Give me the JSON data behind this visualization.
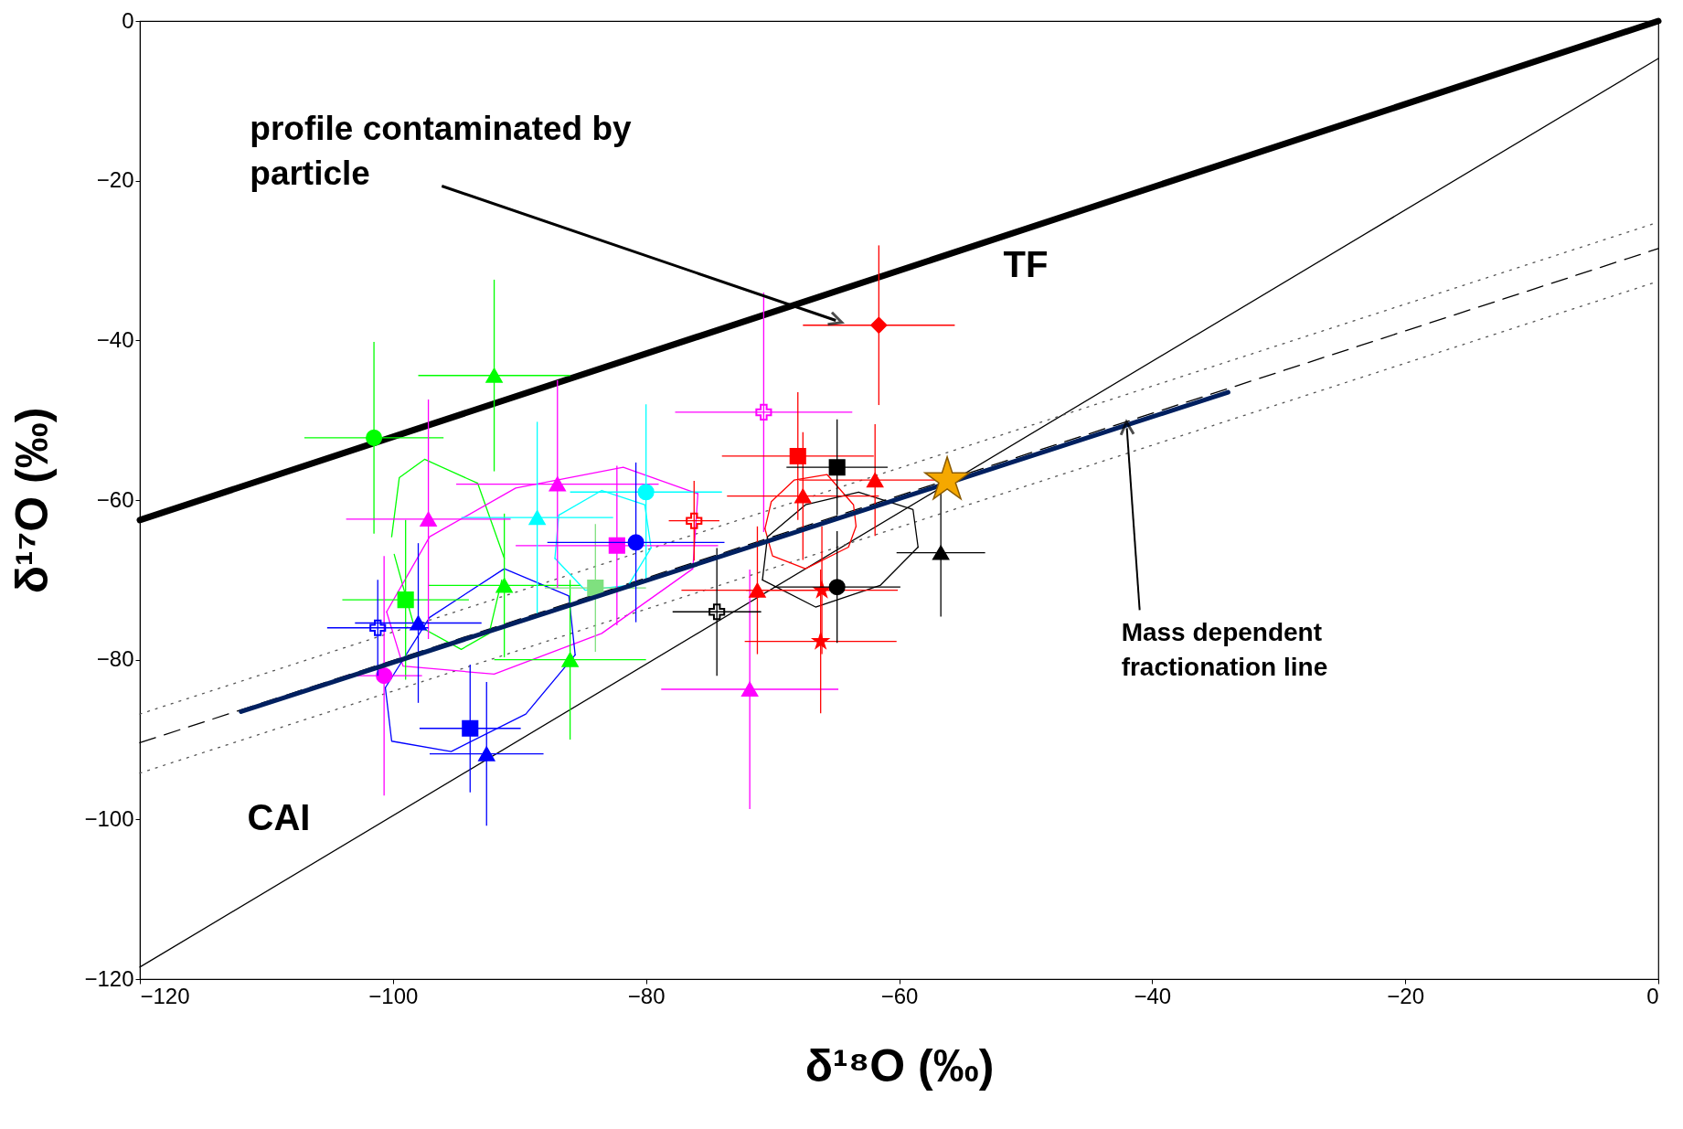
{
  "chart_data": {
    "type": "scatter",
    "xlabel": "δ¹⁸O (‰)",
    "ylabel": "δ¹⁷O (‰)",
    "xlim": [
      -120,
      0
    ],
    "ylim": [
      -120,
      0
    ],
    "xticks": [
      -120,
      -100,
      -80,
      -60,
      -40,
      -20,
      0
    ],
    "yticks": [
      -120,
      -100,
      -80,
      -60,
      -40,
      -20,
      0
    ],
    "series": [
      {
        "type": "line",
        "color": "#000000",
        "line_style": "solid",
        "x": [
          -120,
          0
        ],
        "values": [
          -62.5,
          0
        ]
      },
      {
        "type": "line",
        "color": "#000000",
        "line_style": "solid",
        "x": [
          -120,
          0
        ],
        "values": [
          -118.5,
          -4.7
        ]
      },
      {
        "type": "line",
        "color": "#000000",
        "line_style": "dashed",
        "x": [
          -120,
          0
        ],
        "values": [
          -90.4,
          -28.5
        ]
      },
      {
        "type": "line",
        "color": "#555555",
        "line_style": "dotted",
        "x": [
          -120,
          0
        ],
        "values": [
          -86.8,
          -25.2
        ]
      },
      {
        "type": "line",
        "color": "#555555",
        "line_style": "dotted",
        "x": [
          -120,
          0
        ],
        "values": [
          -94.2,
          -32.6
        ]
      },
      {
        "type": "line",
        "color": "#00ff00",
        "line_style": "solid",
        "x": [
          -100.1,
          -99.5,
          -97.5,
          -93.3,
          -91.2
        ],
        "values": [
          -64.6,
          -57.2,
          -54.9,
          -57.9,
          -67.3
        ]
      },
      {
        "type": "line",
        "color": "#00ff00",
        "line_style": "solid",
        "x": [
          -99.9,
          -98.4,
          -94.6,
          -92.4,
          -91.4
        ],
        "values": [
          -66.8,
          -75.4,
          -78.7,
          -76.7,
          -70.0
        ]
      },
      {
        "type": "line",
        "color": "#ff00ff",
        "line_style": "solid",
        "x": [
          -100.5,
          -97.1,
          -90.3,
          -81.8,
          -75.9
        ],
        "values": [
          -74.0,
          -64.6,
          -58.5,
          -55.9,
          -59.2
        ]
      },
      {
        "type": "line",
        "color": "#ff00ff",
        "line_style": "solid",
        "x": [
          -100.5,
          -99.2,
          -92.0,
          -83.5,
          -76.3,
          -75.9
        ],
        "values": [
          -74.0,
          -80.8,
          -81.8,
          -76.7,
          -68.6,
          -59.2
        ]
      },
      {
        "type": "line",
        "color": "#00ffff",
        "line_style": "solid",
        "x": [
          -87.2,
          -86.9,
          -83.5,
          -80.1,
          -79.6
        ],
        "values": [
          -67.3,
          -61.9,
          -58.8,
          -60.6,
          -66.0
        ]
      },
      {
        "type": "line",
        "color": "#00ffff",
        "line_style": "solid",
        "x": [
          -87.2,
          -84.8,
          -81.4,
          -79.6
        ],
        "values": [
          -67.3,
          -71.3,
          -70.7,
          -66.0
        ]
      },
      {
        "type": "line",
        "color": "#0000ff",
        "line_style": "solid",
        "x": [
          -100.6,
          -97.1,
          -91.2,
          -86.1,
          -85.6
        ],
        "values": [
          -83.5,
          -74.7,
          -68.6,
          -72.0,
          -79.4
        ]
      },
      {
        "type": "line",
        "color": "#0000ff",
        "line_style": "solid",
        "x": [
          -100.6,
          -100.1,
          -95.4,
          -89.5,
          -85.6
        ],
        "values": [
          -83.5,
          -90.2,
          -91.5,
          -86.8,
          -79.4
        ]
      },
      {
        "type": "line",
        "color": "#ff0000",
        "line_style": "solid",
        "x": [
          -70.6,
          -70.1,
          -68.3,
          -65.7,
          -63.6,
          -63.4
        ],
        "values": [
          -63.6,
          -60.2,
          -57.5,
          -56.8,
          -60.6,
          -63.3
        ]
      },
      {
        "type": "line",
        "color": "#ff0000",
        "line_style": "solid",
        "x": [
          -70.6,
          -70.0,
          -67.4,
          -64.0,
          -63.4
        ],
        "values": [
          -63.6,
          -67.0,
          -68.6,
          -65.9,
          -63.3
        ]
      },
      {
        "type": "line",
        "color": "#000000",
        "line_style": "solid",
        "x": [
          -70.8,
          -70.4,
          -67.4,
          -63.2,
          -58.9,
          -58.5
        ],
        "values": [
          -70.0,
          -64.6,
          -60.6,
          -59.0,
          -61.2,
          -65.9
        ]
      },
      {
        "type": "line",
        "color": "#000000",
        "line_style": "solid",
        "x": [
          -70.8,
          -66.6,
          -61.5,
          -58.5
        ],
        "values": [
          -70.0,
          -73.4,
          -70.7,
          -65.9
        ]
      },
      {
        "color": "#00ff00",
        "marker": "circle",
        "x": [
          -101.5
        ],
        "values": [
          -52.2
        ],
        "xerrors": [
          5.5
        ],
        "errors": [
          12
        ]
      },
      {
        "color": "#00ff00",
        "marker": "triangle",
        "x": [
          -92,
          -91.2,
          -86
        ],
        "values": [
          -44.4,
          -70.7,
          -80
        ],
        "xerrors": [
          6,
          6,
          6
        ],
        "errors": [
          12,
          9,
          10
        ]
      },
      {
        "color": "#00ff00",
        "marker": "square",
        "x": [
          -99
        ],
        "values": [
          -72.5
        ],
        "xerrors": [
          5
        ],
        "errors": [
          10
        ]
      },
      {
        "color": "#7fe07f",
        "marker": "square",
        "x": [
          -84
        ],
        "values": [
          -71
        ],
        "xerrors": [
          4
        ],
        "errors": [
          8
        ]
      },
      {
        "color": "#ff00ff",
        "marker": "triangle",
        "x": [
          -97.2,
          -87,
          -71.8
        ],
        "values": [
          -62.4,
          -58,
          -83.7
        ],
        "xerrors": [
          6.5,
          8,
          7
        ],
        "errors": [
          15,
          13,
          15
        ]
      },
      {
        "color": "#ff00ff",
        "marker": "square",
        "x": [
          -82.3
        ],
        "values": [
          -65.7
        ],
        "xerrors": [
          8
        ],
        "errors": [
          10
        ]
      },
      {
        "color": "#ff00ff",
        "marker": "cross",
        "x": [
          -70.7
        ],
        "values": [
          -49
        ],
        "xerrors": [
          7
        ],
        "errors": [
          15
        ]
      },
      {
        "color": "#ff00ff",
        "marker": "circle",
        "x": [
          -100.7
        ],
        "values": [
          -82
        ],
        "xerrors": [
          3
        ],
        "errors": [
          15
        ]
      },
      {
        "color": "#00ffff",
        "marker": "triangle",
        "x": [
          -88.6
        ],
        "values": [
          -62.2
        ],
        "xerrors": [
          6
        ],
        "errors": [
          12
        ]
      },
      {
        "color": "#00ffff",
        "marker": "circle",
        "x": [
          -80
        ],
        "values": [
          -59
        ],
        "xerrors": [
          6
        ],
        "errors": [
          11
        ]
      },
      {
        "color": "#0000ff",
        "marker": "circle",
        "x": [
          -80.8
        ],
        "values": [
          -65.3
        ],
        "xerrors": [
          7
        ],
        "errors": [
          10
        ]
      },
      {
        "color": "#0000ff",
        "marker": "triangle",
        "x": [
          -98,
          -92.6
        ],
        "values": [
          -75.4,
          -91.8
        ],
        "xerrors": [
          5,
          4.5
        ],
        "errors": [
          10,
          9
        ]
      },
      {
        "color": "#0000ff",
        "marker": "square",
        "x": [
          -93.9
        ],
        "values": [
          -88.6
        ],
        "xerrors": [
          4
        ],
        "errors": [
          8
        ]
      },
      {
        "color": "#0000ff",
        "marker": "cross",
        "x": [
          -101.2
        ],
        "values": [
          -76
        ],
        "xerrors": [
          4
        ],
        "errors": [
          6
        ]
      },
      {
        "color": "#ff0000",
        "marker": "diamond",
        "x": [
          -61.6
        ],
        "values": [
          -38.1
        ],
        "xerrors": [
          6
        ],
        "errors": [
          10
        ]
      },
      {
        "color": "#ff0000",
        "marker": "square",
        "x": [
          -68
        ],
        "values": [
          -54.5
        ],
        "xerrors": [
          6
        ],
        "errors": [
          8
        ]
      },
      {
        "color": "#ff0000",
        "marker": "triangle",
        "x": [
          -67.6,
          -61.9,
          -71.2
        ],
        "values": [
          -59.5,
          -57.5,
          -71.3
        ],
        "xerrors": [
          6,
          6,
          6
        ],
        "errors": [
          8,
          7,
          8
        ]
      },
      {
        "color": "#ff0000",
        "marker": "star",
        "x": [
          -66.1,
          -66.2
        ],
        "values": [
          -71.3,
          -77.7
        ],
        "xerrors": [
          6,
          6
        ],
        "errors": [
          8,
          9
        ]
      },
      {
        "color": "#ff0000",
        "marker": "cross",
        "x": [
          -76.2
        ],
        "values": [
          -62.6
        ],
        "xerrors": [
          2
        ],
        "errors": [
          5
        ]
      },
      {
        "color": "#000000",
        "marker": "square",
        "x": [
          -64.9
        ],
        "values": [
          -55.9
        ],
        "xerrors": [
          4
        ],
        "errors": [
          6
        ]
      },
      {
        "color": "#000000",
        "marker": "circle",
        "x": [
          -64.9
        ],
        "values": [
          -70.9
        ],
        "xerrors": [
          5
        ],
        "errors": [
          7
        ]
      },
      {
        "color": "#000000",
        "marker": "triangle",
        "x": [
          -56.7
        ],
        "values": [
          -66.6
        ],
        "xerrors": [
          3.5
        ],
        "errors": [
          8
        ]
      },
      {
        "color": "#000000",
        "marker": "cross",
        "x": [
          -74.4
        ],
        "values": [
          -74
        ],
        "xerrors": [
          3.5
        ],
        "errors": [
          8
        ]
      },
      {
        "type": "line",
        "color": "#002060",
        "line_style": "solid",
        "x": [
          -112,
          -34
        ],
        "values": [
          -86.5,
          -46.5
        ]
      },
      {
        "color": "#f5a800",
        "marker": "star",
        "x": [
          -56.2
        ],
        "values": [
          -57.5
        ]
      }
    ],
    "annotations": [
      {
        "text": "profile contaminated by particle",
        "x": -65,
        "y": -37.5
      },
      "TF",
      "CAI",
      {
        "text": "Mass dependent fractionation line",
        "x": -42,
        "y": -51
      }
    ]
  }
}
